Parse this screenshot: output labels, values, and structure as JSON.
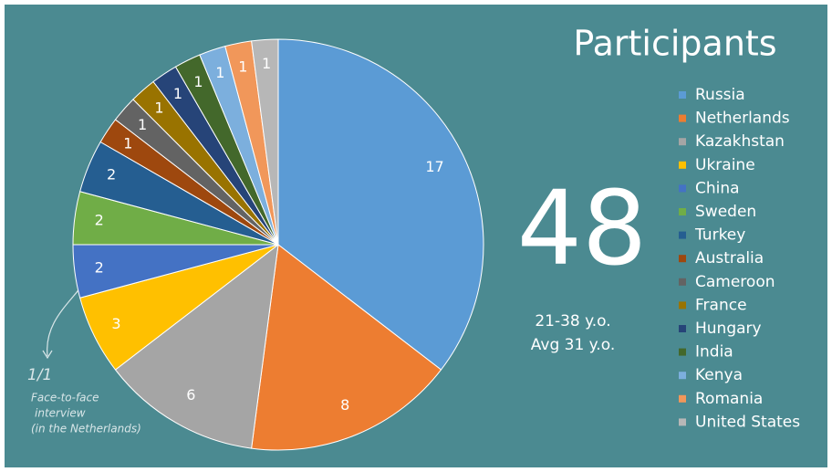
{
  "chart_data": {
    "type": "pie",
    "title": "Participants",
    "categories": [
      "Russia",
      "Netherlands",
      "Kazakhstan",
      "Ukraine",
      "China",
      "Sweden",
      "Turkey",
      "Australia",
      "Cameroon",
      "France",
      "Hungary",
      "India",
      "Kenya",
      "Romania",
      "United States"
    ],
    "values": [
      17,
      8,
      6,
      3,
      2,
      2,
      2,
      1,
      1,
      1,
      1,
      1,
      1,
      1,
      1
    ],
    "colors": [
      "#5b9bd5",
      "#ed7d31",
      "#a5a5a5",
      "#ffc000",
      "#4472c4",
      "#70ad47",
      "#255e91",
      "#9e480e",
      "#636363",
      "#997300",
      "#264478",
      "#43682b",
      "#7cafdd",
      "#f1975a",
      "#b7b7b7"
    ],
    "total": 48,
    "age_range": "21-38 y.o.",
    "age_avg": "Avg 31 y.o.",
    "annotation": {
      "ratio": "1/1",
      "lines": [
        "Face-to-face",
        "interview",
        "(in the Netherlands)"
      ]
    }
  }
}
